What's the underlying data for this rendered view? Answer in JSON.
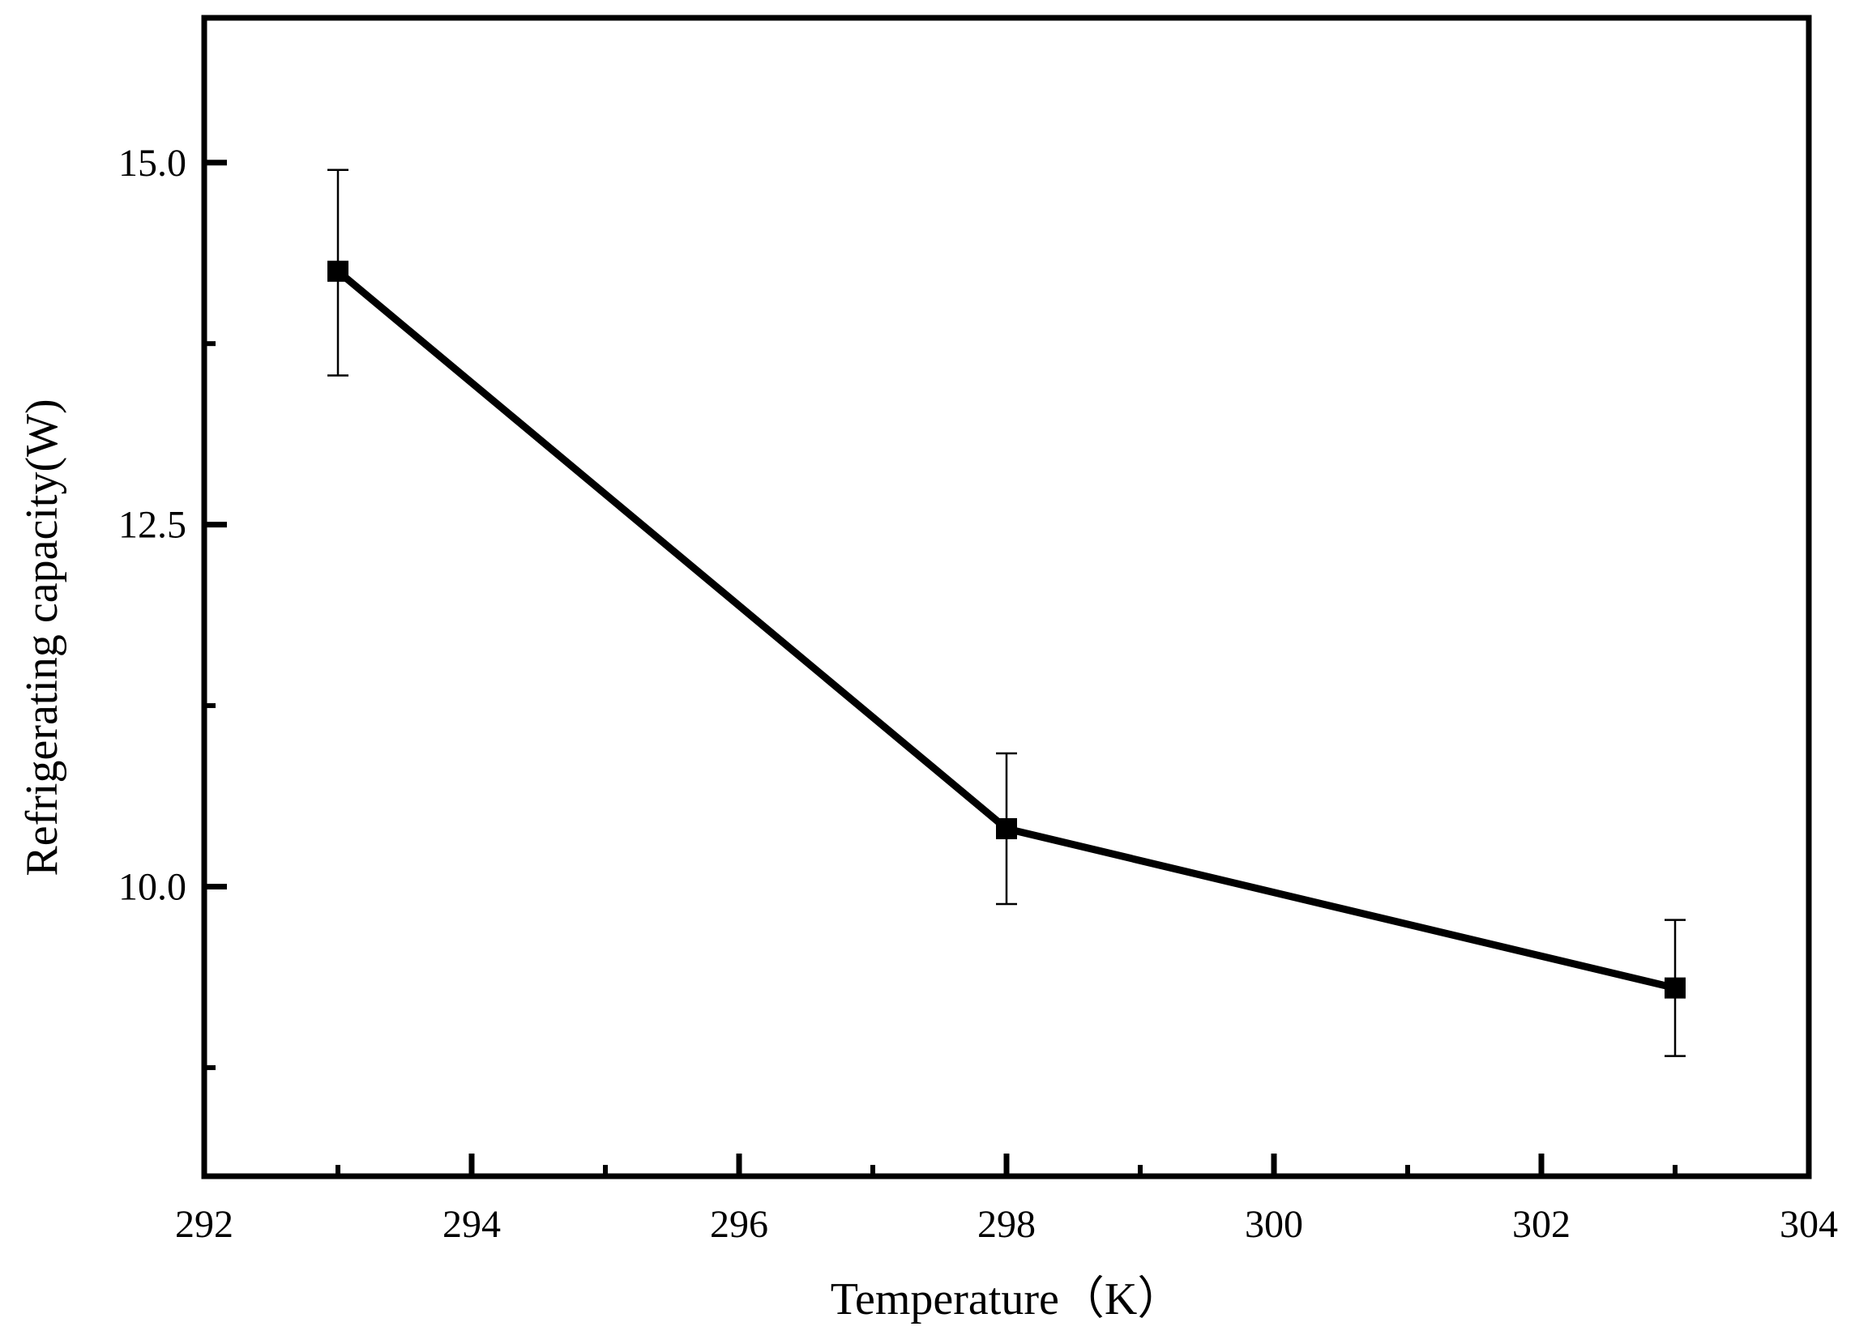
{
  "chart_data": {
    "type": "line",
    "xlabel": "Temperature（K）",
    "ylabel": "Refrigerating capacity(W)",
    "xlim": [
      292,
      304
    ],
    "ylim": [
      8.0,
      16.0
    ],
    "x_ticks": [
      "292",
      "294",
      "296",
      "298",
      "300",
      "302",
      "304"
    ],
    "y_ticks": [
      "10.0",
      "12.5",
      "15.0"
    ],
    "y_tick_values": [
      10.0,
      12.5,
      15.0
    ],
    "x_minor_step": 1,
    "y_minor_step": 1.25,
    "grid": false,
    "marker": "square",
    "series": [
      {
        "x": [
          293,
          298,
          303
        ],
        "y": [
          14.25,
          10.4,
          9.3
        ],
        "err_low": [
          0.72,
          0.52,
          0.47
        ],
        "err_high": [
          0.7,
          0.52,
          0.47
        ]
      }
    ],
    "color": "#000000"
  }
}
